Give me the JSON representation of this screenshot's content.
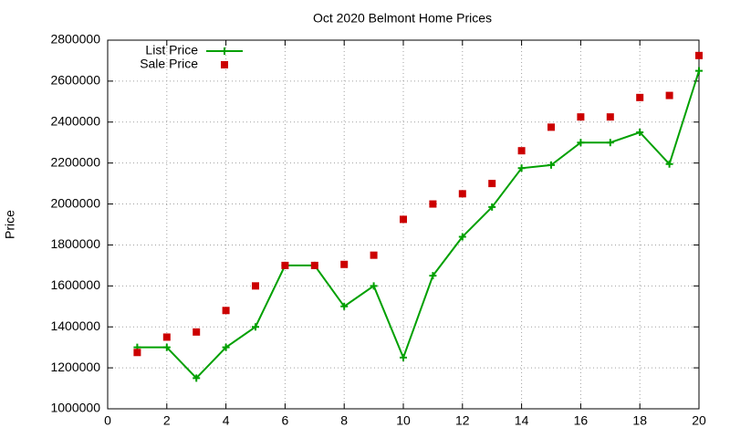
{
  "chart_data": {
    "type": "line",
    "title": "Oct 2020 Belmont Home Prices",
    "y_label": "Price",
    "x": [
      1,
      2,
      3,
      4,
      5,
      6,
      7,
      8,
      9,
      10,
      11,
      12,
      13,
      14,
      15,
      16,
      17,
      18,
      19,
      20
    ],
    "series": [
      {
        "name": "List Price",
        "color": "#00a000",
        "line": true,
        "marker": "plus",
        "values": [
          1300000,
          1300000,
          1150000,
          1300000,
          1400000,
          1700000,
          1700000,
          1500000,
          1600000,
          1250000,
          1650000,
          1840000,
          1985000,
          2175000,
          2190000,
          2300000,
          2300000,
          2350000,
          2195000,
          2650000
        ]
      },
      {
        "name": "Sale Price",
        "color": "#cc0000",
        "line": false,
        "marker": "square",
        "values": [
          1275000,
          1350000,
          1375000,
          1480000,
          1600000,
          1700000,
          1700000,
          1705000,
          1750000,
          1925000,
          2000000,
          2050000,
          2100000,
          2260000,
          2375000,
          2425000,
          2425000,
          2520000,
          2530000,
          2725000
        ]
      }
    ],
    "xlim": [
      0,
      20
    ],
    "xticks": [
      0,
      2,
      4,
      6,
      8,
      10,
      12,
      14,
      16,
      18,
      20
    ],
    "ylim": [
      1000000,
      2800000
    ],
    "yticks": [
      1000000,
      1200000,
      1400000,
      1600000,
      1800000,
      2000000,
      2200000,
      2400000,
      2600000,
      2800000
    ],
    "grid": true,
    "legend": "top-left"
  }
}
